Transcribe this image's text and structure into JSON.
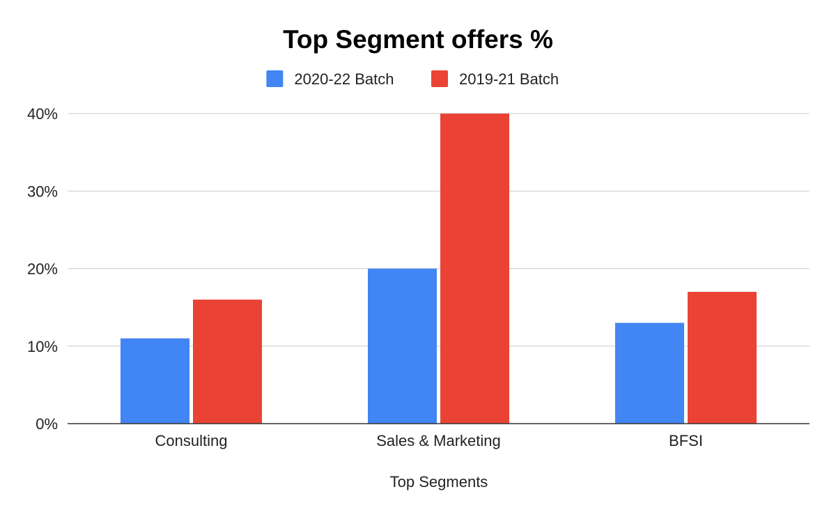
{
  "chart_data": {
    "type": "bar",
    "title": "Top Segment offers %",
    "xlabel": "Top Segments",
    "ylabel": "",
    "categories": [
      "Consulting",
      "Sales & Marketing",
      "BFSI"
    ],
    "series": [
      {
        "name": "2020-22 Batch",
        "color": "#4285f4",
        "values": [
          11,
          20,
          13
        ]
      },
      {
        "name": "2019-21 Batch",
        "color": "#ea4335",
        "values": [
          16,
          40,
          17
        ]
      }
    ],
    "ylim": [
      0,
      40
    ],
    "yticks": [
      0,
      10,
      20,
      30,
      40
    ],
    "ytick_labels": [
      "0%",
      "10%",
      "20%",
      "30%",
      "40%"
    ],
    "grid": true,
    "legend_position": "top"
  }
}
